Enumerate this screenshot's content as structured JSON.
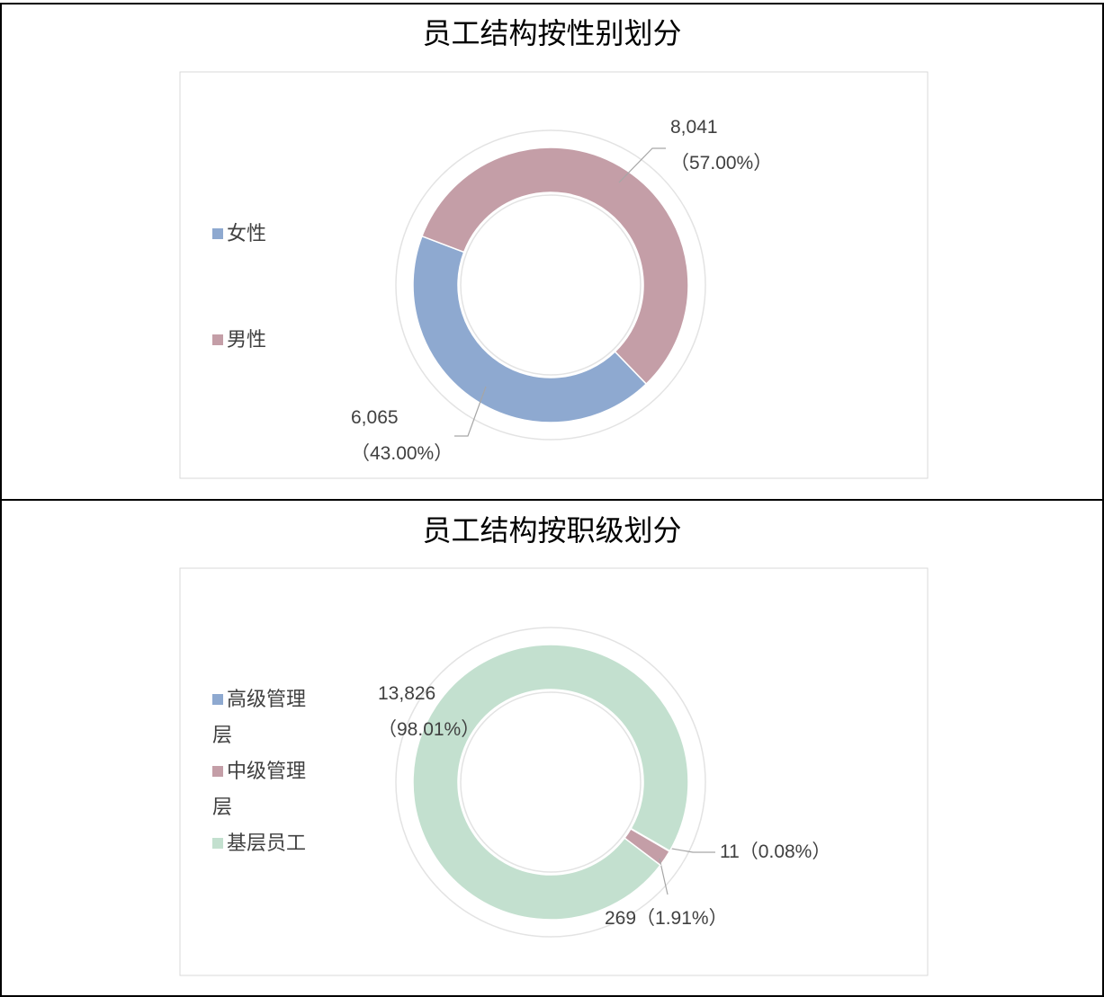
{
  "chart_data": [
    {
      "type": "donut",
      "title": "员工结构按性别划分",
      "categories": [
        "女性",
        "男性"
      ],
      "values": [
        6065,
        8041
      ],
      "value_labels": [
        "6,065（43.00%）",
        "8,041（57.00%）"
      ],
      "colors": [
        "#8ea9d0",
        "#c49ea7"
      ],
      "legend": "left"
    },
    {
      "type": "donut",
      "title": "员工结构按职级划分",
      "categories": [
        "高级管理层",
        "中级管理层",
        "基层员工"
      ],
      "values": [
        11,
        269,
        13826
      ],
      "value_labels": [
        "11（0.08%）",
        "269（1.91%）",
        "13,826（98.01%）"
      ],
      "colors": [
        "#8ea9d0",
        "#c49ea7",
        "#c3e0cf"
      ],
      "legend": "left"
    }
  ]
}
